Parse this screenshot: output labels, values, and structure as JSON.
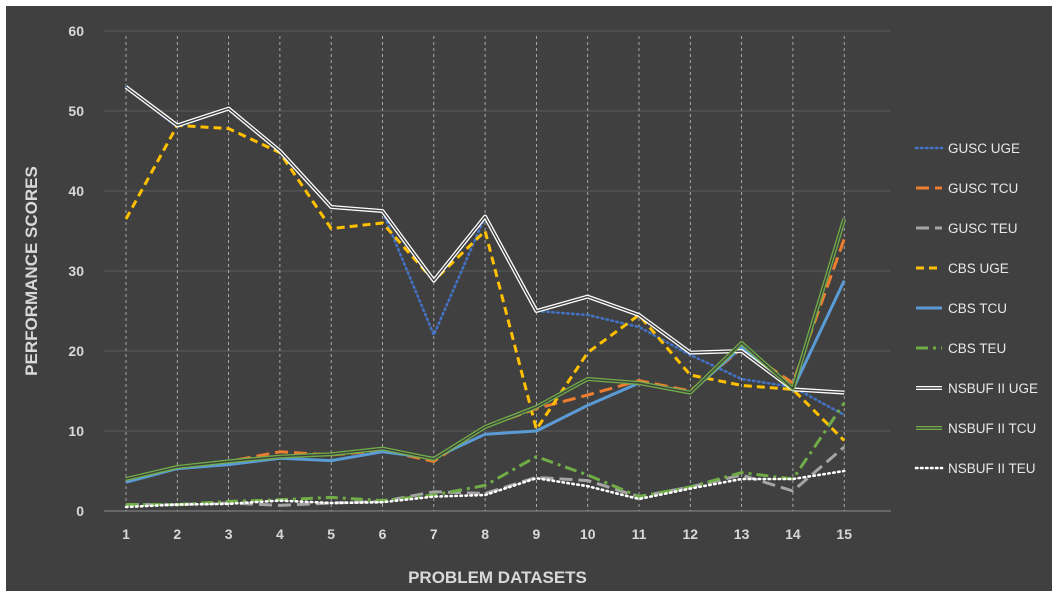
{
  "chart_data": {
    "type": "line",
    "title": "",
    "xlabel": "PROBLEM DATASETS",
    "ylabel": "PERFORMANCE SCORES",
    "categories": [
      "1",
      "2",
      "3",
      "4",
      "5",
      "6",
      "7",
      "8",
      "9",
      "10",
      "11",
      "12",
      "13",
      "14",
      "15"
    ],
    "ylim": [
      0,
      60
    ],
    "yticks": [
      "0",
      "10",
      "20",
      "30",
      "40",
      "50",
      "60"
    ],
    "grid": "horizontal solid, vertical dashed",
    "legend_position": "right",
    "series": [
      {
        "name": "GUSC UGE",
        "color": "#4472c4",
        "dash": "dotted",
        "values": [
          53,
          48,
          50.3,
          45,
          38,
          37.5,
          22,
          36.8,
          25,
          24.5,
          23,
          19.5,
          16.5,
          15.5,
          12
        ]
      },
      {
        "name": "GUSC TCU",
        "color": "#ed7d31",
        "dash": "long-dash",
        "values": [
          3.8,
          5.5,
          6.2,
          7.4,
          7,
          7.6,
          6.2,
          10.5,
          12.8,
          14.5,
          16.3,
          15,
          20.3,
          16,
          34
        ]
      },
      {
        "name": "GUSC TEU",
        "color": "#a5a5a5",
        "dash": "long-dash",
        "values": [
          0.8,
          0.8,
          1,
          0.7,
          1,
          1.2,
          2.4,
          2.2,
          4.2,
          3.8,
          1.8,
          3,
          4.5,
          2.5,
          8
        ]
      },
      {
        "name": "CBS UGE",
        "color": "#ffc000",
        "dash": "dash",
        "values": [
          36.5,
          48.2,
          47.8,
          44.8,
          35.3,
          36,
          28.8,
          35,
          10.2,
          19.8,
          24.5,
          17,
          15.7,
          15.2,
          8.8
        ]
      },
      {
        "name": "CBS TCU",
        "color": "#5b9bd5",
        "dash": "solid",
        "values": [
          3.6,
          5.3,
          5.8,
          6.6,
          6.3,
          7.4,
          6.6,
          9.6,
          10,
          13.2,
          16,
          14.8,
          20.5,
          15.2,
          28.8
        ]
      },
      {
        "name": "CBS TEU",
        "color": "#70ad47",
        "dash": "dash-dot",
        "values": [
          0.8,
          0.8,
          1.2,
          1.4,
          1.7,
          1.3,
          2,
          3.2,
          6.8,
          4.5,
          1.8,
          3,
          4.8,
          4,
          13.5
        ]
      },
      {
        "name": "NSBUF II UGE",
        "color": "#ffffff",
        "dash": "double",
        "values": [
          53,
          48.2,
          50.3,
          45,
          38,
          37.5,
          28.8,
          36.8,
          25,
          26.8,
          24.5,
          19.8,
          20,
          15.2,
          14.8
        ]
      },
      {
        "name": "NSBUF II TCU",
        "color": "#70ad47",
        "dash": "double",
        "values": [
          4,
          5.5,
          6.2,
          6.8,
          7.1,
          7.8,
          6.5,
          10.5,
          13,
          16.5,
          16,
          14.8,
          21,
          15.3,
          36.5
        ]
      },
      {
        "name": "NSBUF II TEU",
        "color": "#ffffff",
        "dash": "dotted",
        "values": [
          0.5,
          0.8,
          0.9,
          1.3,
          1,
          1.1,
          1.8,
          2,
          4.1,
          3.1,
          1.5,
          2.8,
          4,
          4,
          5
        ]
      }
    ]
  }
}
